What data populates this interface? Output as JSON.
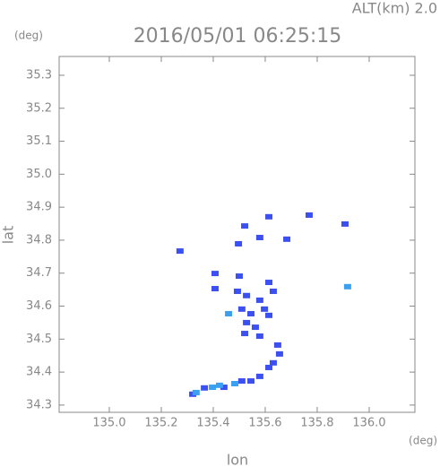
{
  "chart_data": {
    "type": "scatter",
    "title": "2016/05/01 06:25:15",
    "subtitle": "ALT(km) 2.0",
    "x_label": "lon",
    "y_label": "lat",
    "x_unit": "(deg)",
    "y_unit": "(deg)",
    "xlim": [
      134.807,
      136.176
    ],
    "ylim": [
      34.278,
      35.357
    ],
    "xticks": [
      {
        "value": 135,
        "label": "135.0"
      },
      135.2,
      135.4,
      135.6,
      135.8,
      {
        "value": 136,
        "label": "136.0"
      }
    ],
    "yticks": [
      34.3,
      34.4,
      34.5,
      34.6,
      34.7,
      34.8,
      34.9,
      {
        "value": 35,
        "label": "35.0"
      },
      35.1,
      35.2,
      35.3
    ],
    "series": [
      {
        "color": "#3c50f0",
        "x": [
          135.614,
          135.521,
          135.579,
          135.497,
          135.683,
          135.407,
          135.5,
          135.407,
          135.493,
          135.528,
          135.614,
          135.631,
          135.579,
          135.51,
          135.545,
          135.597,
          135.528,
          135.562,
          135.614,
          135.521,
          135.579,
          135.648,
          135.655,
          135.631,
          135.614,
          135.51,
          135.545,
          135.579,
          135.441,
          135.366,
          135.321,
          135.769,
          135.907,
          135.272
        ],
        "values": [
          34.871,
          34.843,
          34.808,
          34.789,
          34.803,
          34.699,
          34.691,
          34.653,
          34.645,
          34.632,
          34.672,
          34.645,
          34.618,
          34.591,
          34.577,
          34.591,
          34.55,
          34.536,
          34.572,
          34.517,
          34.509,
          34.482,
          34.455,
          34.428,
          34.414,
          34.373,
          34.373,
          34.387,
          34.354,
          34.352,
          34.333,
          34.876,
          34.849,
          34.767
        ]
      },
      {
        "color": "#3ca0f0",
        "x": [
          135.397,
          135.424,
          135.483,
          135.334,
          135.917,
          135.459
        ],
        "values": [
          34.354,
          34.36,
          34.365,
          34.338,
          34.659,
          34.577
        ]
      }
    ]
  }
}
